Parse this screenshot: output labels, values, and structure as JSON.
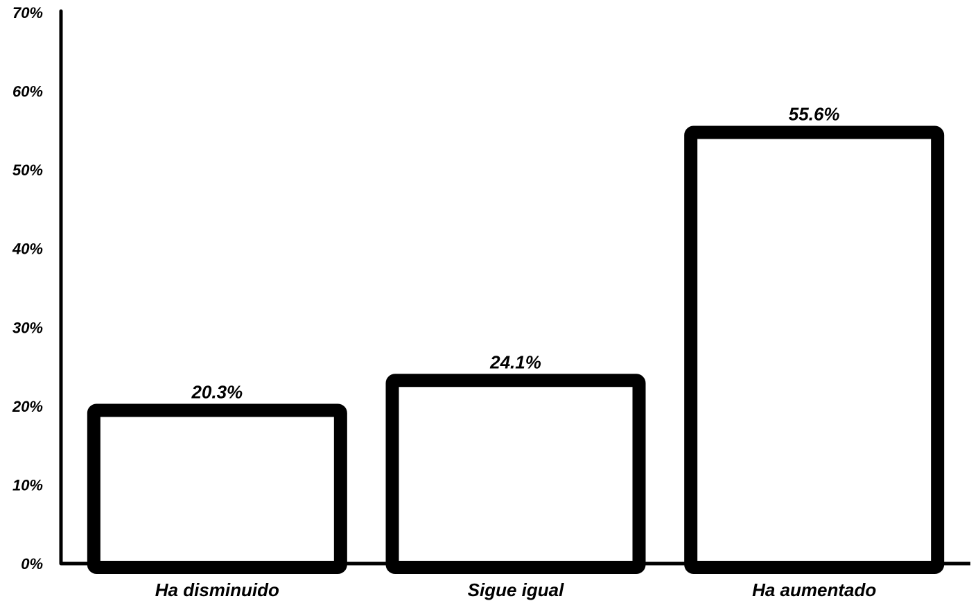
{
  "chart_data": {
    "type": "bar",
    "categories": [
      "Ha disminuido",
      "Sigue igual",
      "Ha aumentado"
    ],
    "values": [
      20.3,
      24.1,
      55.6
    ],
    "data_labels": [
      "20.3%",
      "24.1%",
      "55.6%"
    ],
    "y_ticks": [
      0,
      10,
      20,
      30,
      40,
      50,
      60,
      70
    ],
    "y_tick_labels": [
      "0%",
      "10%",
      "20%",
      "30%",
      "40%",
      "50%",
      "60%",
      "70%"
    ],
    "ylim": [
      0,
      70
    ],
    "title": "",
    "xlabel": "",
    "ylabel": "",
    "grid": false,
    "legend": "none",
    "colors": {
      "bar_fill": "#ffffff",
      "bar_stroke": "#000000",
      "axis": "#000000"
    }
  }
}
